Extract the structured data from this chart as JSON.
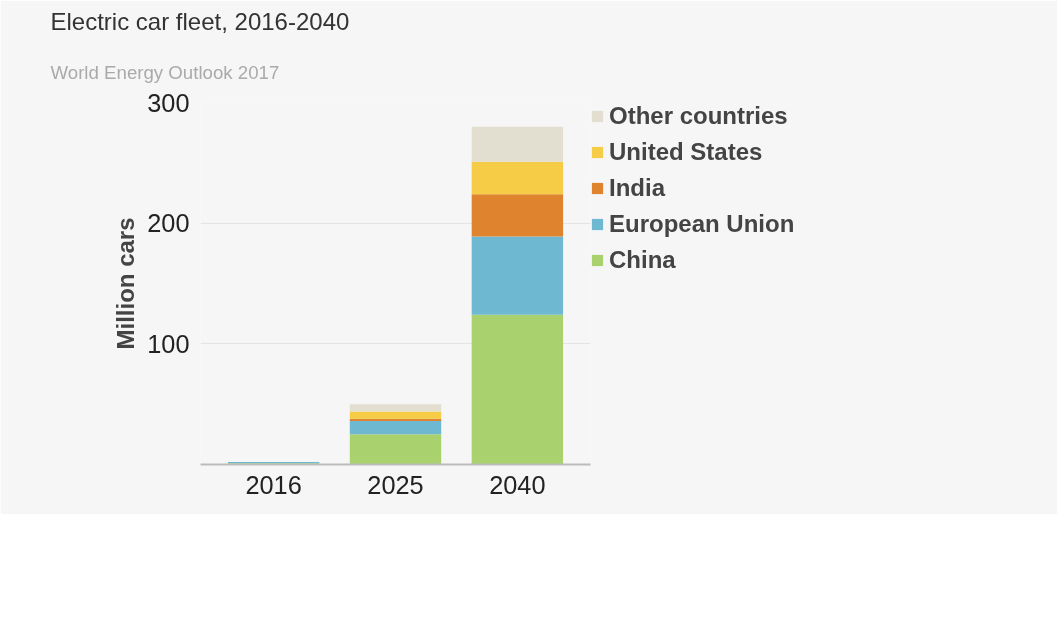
{
  "chart_data": {
    "type": "bar",
    "stacked": true,
    "title": "Electric car fleet, 2016-2040",
    "subtitle": "World Energy Outlook 2017",
    "ylabel": "Million cars",
    "categories": [
      "2016",
      "2025",
      "2040"
    ],
    "series": [
      {
        "name": "China",
        "color": "#a9d26f",
        "values": [
          1,
          25,
          124
        ]
      },
      {
        "name": "European Union",
        "color": "#6fb8d1",
        "values": [
          1,
          11,
          65
        ]
      },
      {
        "name": "India",
        "color": "#e0832f",
        "values": [
          null,
          2,
          35
        ]
      },
      {
        "name": "United States",
        "color": "#f6cb45",
        "values": [
          null,
          6,
          27
        ]
      },
      {
        "name": "Other countries",
        "color": "#e2dfd0",
        "values": [
          null,
          6,
          29
        ]
      }
    ],
    "ylim": [
      0,
      300
    ],
    "yticks": [
      100,
      200,
      300
    ],
    "grid": "y",
    "legend": "right"
  }
}
